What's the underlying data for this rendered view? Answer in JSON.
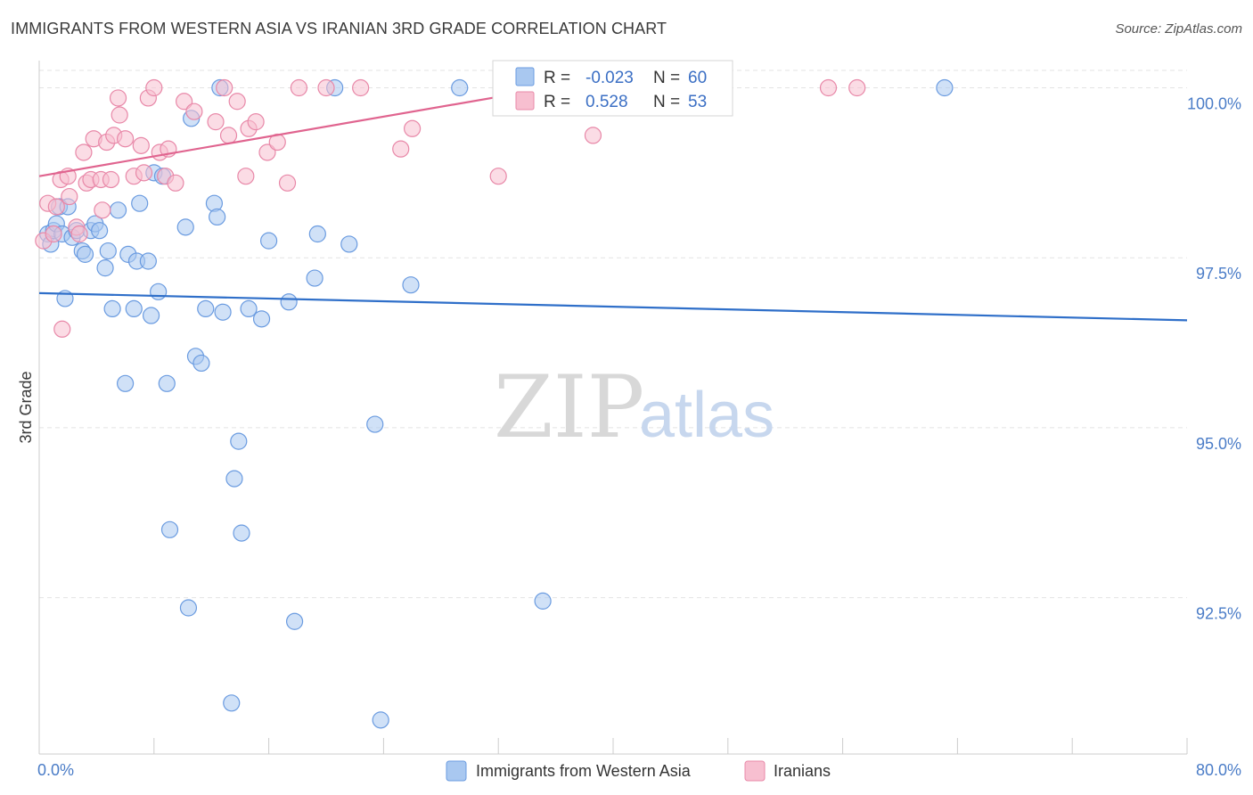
{
  "title": "IMMIGRANTS FROM WESTERN ASIA VS IRANIAN 3RD GRADE CORRELATION CHART",
  "source": "Source: ZipAtlas.com",
  "watermark": {
    "zip": "ZIP",
    "atlas": "atlas"
  },
  "legend_box": {
    "rows": [
      {
        "r_label": "R =",
        "r_value": "-0.023",
        "n_label": "N =",
        "n_value": "60",
        "color": "#a9c8f0",
        "stroke": "#6a9be0"
      },
      {
        "r_label": "R =",
        "r_value": "0.528",
        "n_label": "N =",
        "n_value": "53",
        "color": "#f7bfd0",
        "stroke": "#e888a8"
      }
    ]
  },
  "chart_data": {
    "type": "scatter",
    "title": "IMMIGRANTS FROM WESTERN ASIA VS IRANIAN 3RD GRADE CORRELATION CHART",
    "xlabel": "",
    "ylabel": "3rd Grade",
    "xlim": [
      0,
      80
    ],
    "ylim": [
      90.2,
      100.4
    ],
    "x_tick_labels": [
      {
        "value": 0,
        "label": "0.0%"
      },
      {
        "value": 80,
        "label": "80.0%"
      }
    ],
    "y_tick_labels": [
      {
        "value": 100,
        "label": "100.0%"
      },
      {
        "value": 97.5,
        "label": "97.5%"
      },
      {
        "value": 95,
        "label": "95.0%"
      },
      {
        "value": 92.5,
        "label": "92.5%"
      }
    ],
    "x_minor_ticks": [
      0,
      8,
      16,
      24,
      32,
      40,
      48,
      56,
      64,
      72,
      80
    ],
    "grid": true,
    "legend": {
      "position": "bottom",
      "entries": [
        "Immigrants from Western Asia",
        "Iranians"
      ]
    },
    "series": [
      {
        "name": "Immigrants from Western Asia",
        "color": "#a9c8f0",
        "stroke": "#6a9be0",
        "line_color": "#2f6fc9",
        "trend": {
          "x": [
            0,
            80
          ],
          "y": [
            96.98,
            96.58
          ]
        },
        "points": [
          [
            0.6,
            97.85
          ],
          [
            0.8,
            97.7
          ],
          [
            1.0,
            97.9
          ],
          [
            1.2,
            98.0
          ],
          [
            1.4,
            98.25
          ],
          [
            1.6,
            97.85
          ],
          [
            1.8,
            96.9
          ],
          [
            2.0,
            98.25
          ],
          [
            2.3,
            97.8
          ],
          [
            2.6,
            97.9
          ],
          [
            3.0,
            97.6
          ],
          [
            3.2,
            97.55
          ],
          [
            3.6,
            97.9
          ],
          [
            3.9,
            98.0
          ],
          [
            4.2,
            97.9
          ],
          [
            4.6,
            97.35
          ],
          [
            4.8,
            97.6
          ],
          [
            5.1,
            96.75
          ],
          [
            5.5,
            98.2
          ],
          [
            6.0,
            95.65
          ],
          [
            6.2,
            97.55
          ],
          [
            6.6,
            96.75
          ],
          [
            6.8,
            97.45
          ],
          [
            7.0,
            98.3
          ],
          [
            7.6,
            97.45
          ],
          [
            7.8,
            96.65
          ],
          [
            8.0,
            98.75
          ],
          [
            8.3,
            97.0
          ],
          [
            8.6,
            98.7
          ],
          [
            8.9,
            95.65
          ],
          [
            9.1,
            93.5
          ],
          [
            10.2,
            97.95
          ],
          [
            10.4,
            92.35
          ],
          [
            10.6,
            99.55
          ],
          [
            10.9,
            96.05
          ],
          [
            11.3,
            95.95
          ],
          [
            11.6,
            96.75
          ],
          [
            12.2,
            98.3
          ],
          [
            12.4,
            98.1
          ],
          [
            12.6,
            100.0
          ],
          [
            12.8,
            96.7
          ],
          [
            13.4,
            90.95
          ],
          [
            13.6,
            94.25
          ],
          [
            13.9,
            94.8
          ],
          [
            14.1,
            93.45
          ],
          [
            14.6,
            96.75
          ],
          [
            15.5,
            96.6
          ],
          [
            16.0,
            97.75
          ],
          [
            17.4,
            96.85
          ],
          [
            17.8,
            92.15
          ],
          [
            19.2,
            97.2
          ],
          [
            19.4,
            97.85
          ],
          [
            20.6,
            100.0
          ],
          [
            21.6,
            97.7
          ],
          [
            23.4,
            95.05
          ],
          [
            23.8,
            90.7
          ],
          [
            25.9,
            97.1
          ],
          [
            29.3,
            100.0
          ],
          [
            35.1,
            92.45
          ],
          [
            63.1,
            100.0
          ]
        ]
      },
      {
        "name": "Iranians",
        "color": "#f7bfd0",
        "stroke": "#e888a8",
        "line_color": "#e0648f",
        "trend": {
          "x": [
            0,
            37
          ],
          "y": [
            98.7,
            100.05
          ]
        },
        "points": [
          [
            0.3,
            97.75
          ],
          [
            0.6,
            98.3
          ],
          [
            1.0,
            97.85
          ],
          [
            1.2,
            98.25
          ],
          [
            1.5,
            98.65
          ],
          [
            1.6,
            96.45
          ],
          [
            2.0,
            98.7
          ],
          [
            2.1,
            98.4
          ],
          [
            2.6,
            97.95
          ],
          [
            2.8,
            97.85
          ],
          [
            3.1,
            99.05
          ],
          [
            3.3,
            98.6
          ],
          [
            3.6,
            98.65
          ],
          [
            3.8,
            99.25
          ],
          [
            4.3,
            98.65
          ],
          [
            4.4,
            98.2
          ],
          [
            4.7,
            99.2
          ],
          [
            5.0,
            98.65
          ],
          [
            5.2,
            99.3
          ],
          [
            5.5,
            99.85
          ],
          [
            5.6,
            99.6
          ],
          [
            6.0,
            99.25
          ],
          [
            6.6,
            98.7
          ],
          [
            7.1,
            99.15
          ],
          [
            7.3,
            98.75
          ],
          [
            7.6,
            99.85
          ],
          [
            8.0,
            100.0
          ],
          [
            8.4,
            99.05
          ],
          [
            8.8,
            98.7
          ],
          [
            9.0,
            99.1
          ],
          [
            9.5,
            98.6
          ],
          [
            10.1,
            99.8
          ],
          [
            10.8,
            99.65
          ],
          [
            12.3,
            99.5
          ],
          [
            12.9,
            100.0
          ],
          [
            13.2,
            99.3
          ],
          [
            13.8,
            99.8
          ],
          [
            14.4,
            98.7
          ],
          [
            14.6,
            99.4
          ],
          [
            15.1,
            99.5
          ],
          [
            15.9,
            99.05
          ],
          [
            16.6,
            99.2
          ],
          [
            17.3,
            98.6
          ],
          [
            18.1,
            100.0
          ],
          [
            20.0,
            100.0
          ],
          [
            22.4,
            100.0
          ],
          [
            25.2,
            99.1
          ],
          [
            26.0,
            99.4
          ],
          [
            32.0,
            98.7
          ],
          [
            34.8,
            100.0
          ],
          [
            38.6,
            99.3
          ],
          [
            55.0,
            100.0
          ],
          [
            57.0,
            100.0
          ]
        ]
      }
    ]
  }
}
